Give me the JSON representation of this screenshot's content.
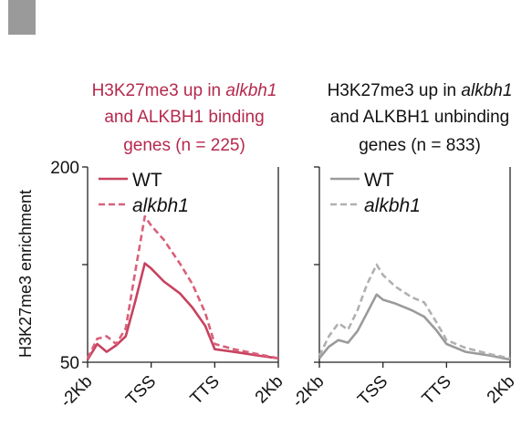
{
  "chart_data": [
    {
      "type": "line",
      "title_lines": [
        {
          "parts": [
            {
              "text": "H3K27me3 up in ",
              "italic": false
            },
            {
              "text": "alkbh1",
              "italic": true
            }
          ]
        },
        {
          "parts": [
            {
              "text": "and ALKBH1 binding",
              "italic": false
            }
          ]
        },
        {
          "parts": [
            {
              "text": "genes (n = 225)",
              "italic": false
            }
          ]
        }
      ],
      "title_color": "#b5294e",
      "ylabel": "H3K27me3 enrichment",
      "yticks": [
        200,
        50
      ],
      "ylim": [
        50,
        200
      ],
      "x": [
        "-2Kb",
        "TSS",
        "TTS",
        "2Kb"
      ],
      "xticks": [
        "-2Kb",
        "TSS",
        "TTS",
        "2Kb"
      ],
      "legend_position": "top-left",
      "series": [
        {
          "name": "WT",
          "style": "solid",
          "color": "#c8425f",
          "points": [
            [
              0,
              52
            ],
            [
              0.15,
              64
            ],
            [
              0.3,
              58
            ],
            [
              0.45,
              63
            ],
            [
              0.6,
              70
            ],
            [
              0.75,
              97
            ],
            [
              0.9,
              126
            ],
            [
              1.0,
              122
            ],
            [
              1.2,
              112
            ],
            [
              1.45,
              103
            ],
            [
              1.65,
              92
            ],
            [
              1.85,
              78
            ],
            [
              2.0,
              60
            ],
            [
              2.3,
              58
            ],
            [
              2.7,
              55
            ],
            [
              3.0,
              53
            ]
          ]
        },
        {
          "name": "alkbh1",
          "style": "dashed",
          "color": "#d9607a",
          "points": [
            [
              0,
              53
            ],
            [
              0.15,
              68
            ],
            [
              0.3,
              70
            ],
            [
              0.45,
              64
            ],
            [
              0.6,
              76
            ],
            [
              0.75,
              120
            ],
            [
              0.9,
              162
            ],
            [
              1.0,
              155
            ],
            [
              1.2,
              144
            ],
            [
              1.45,
              126
            ],
            [
              1.65,
              110
            ],
            [
              1.85,
              88
            ],
            [
              2.0,
              64
            ],
            [
              2.3,
              60
            ],
            [
              2.7,
              56
            ],
            [
              3.0,
              53
            ]
          ]
        }
      ]
    },
    {
      "type": "line",
      "title_lines": [
        {
          "parts": [
            {
              "text": "H3K27me3 up in ",
              "italic": false
            },
            {
              "text": "alkbh1",
              "italic": true
            }
          ]
        },
        {
          "parts": [
            {
              "text": "and ALKBH1 unbinding",
              "italic": false
            }
          ]
        },
        {
          "parts": [
            {
              "text": "genes (n = 833)",
              "italic": false
            }
          ]
        }
      ],
      "title_color": "#111111",
      "ylim": [
        50,
        200
      ],
      "x": [
        "-2Kb",
        "TSS",
        "TTS",
        "2Kb"
      ],
      "xticks": [
        "-2Kb",
        "TSS",
        "TTS",
        "2Kb"
      ],
      "legend_position": "top-left",
      "series": [
        {
          "name": "WT",
          "style": "solid",
          "color": "#9a9a9a",
          "points": [
            [
              0,
              53
            ],
            [
              0.15,
              62
            ],
            [
              0.3,
              67
            ],
            [
              0.45,
              65
            ],
            [
              0.6,
              74
            ],
            [
              0.75,
              88
            ],
            [
              0.9,
              102
            ],
            [
              1.0,
              98
            ],
            [
              1.2,
              95
            ],
            [
              1.45,
              90
            ],
            [
              1.65,
              85
            ],
            [
              1.85,
              74
            ],
            [
              2.0,
              64
            ],
            [
              2.3,
              58
            ],
            [
              2.7,
              55
            ],
            [
              3.0,
              52
            ]
          ]
        },
        {
          "name": "alkbh1",
          "style": "dashed",
          "color": "#b0b0b0",
          "points": [
            [
              0,
              55
            ],
            [
              0.15,
              70
            ],
            [
              0.3,
              80
            ],
            [
              0.45,
              75
            ],
            [
              0.6,
              90
            ],
            [
              0.75,
              110
            ],
            [
              0.9,
              125
            ],
            [
              1.0,
              117
            ],
            [
              1.2,
              108
            ],
            [
              1.45,
              100
            ],
            [
              1.65,
              96
            ],
            [
              1.85,
              80
            ],
            [
              2.0,
              67
            ],
            [
              2.3,
              61
            ],
            [
              2.7,
              56
            ],
            [
              3.0,
              53
            ]
          ]
        }
      ]
    }
  ]
}
